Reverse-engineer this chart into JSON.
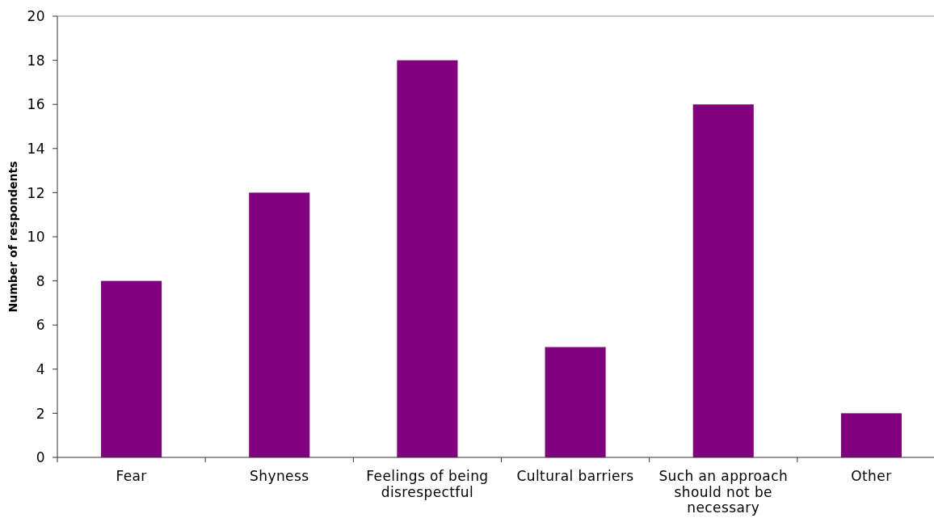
{
  "chart_data": {
    "type": "bar",
    "ylabel": "Number of respondents",
    "categories": [
      "Fear",
      "Shyness",
      "Feelings of being disrespectful",
      "Cultural barriers",
      "Such an approach should not be necessary",
      "Other"
    ],
    "values": [
      8,
      12,
      18,
      5,
      16,
      2
    ],
    "color": "#800080",
    "ylim": [
      0,
      20
    ],
    "yticks": [
      0,
      2,
      4,
      6,
      8,
      10,
      12,
      14,
      16,
      18,
      20
    ]
  }
}
